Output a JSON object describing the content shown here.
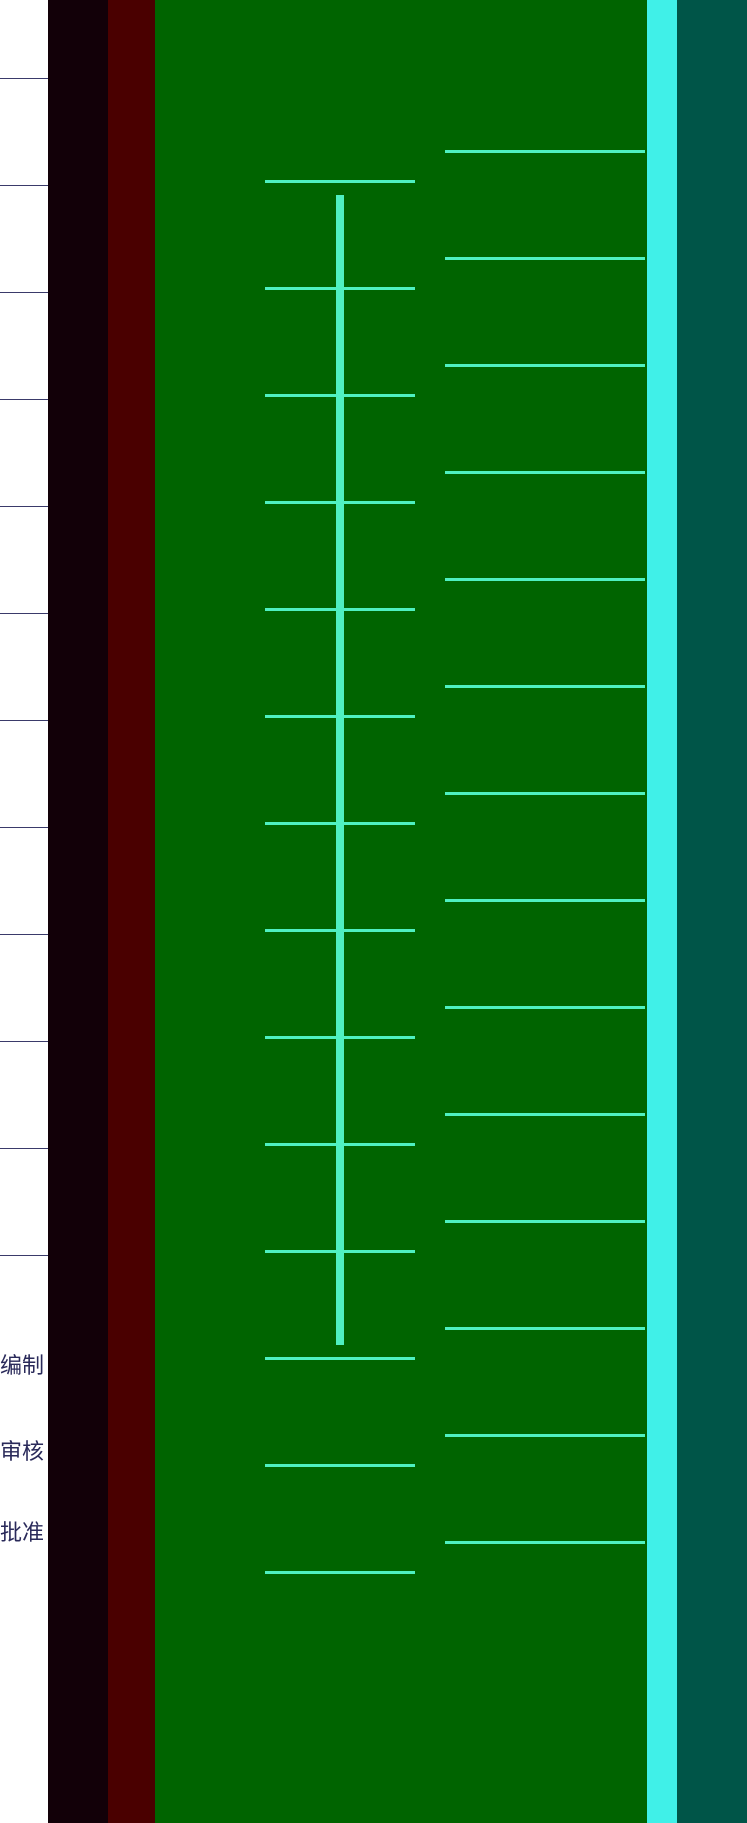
{
  "labels": [
    "编制",
    "审核",
    "批准"
  ]
}
